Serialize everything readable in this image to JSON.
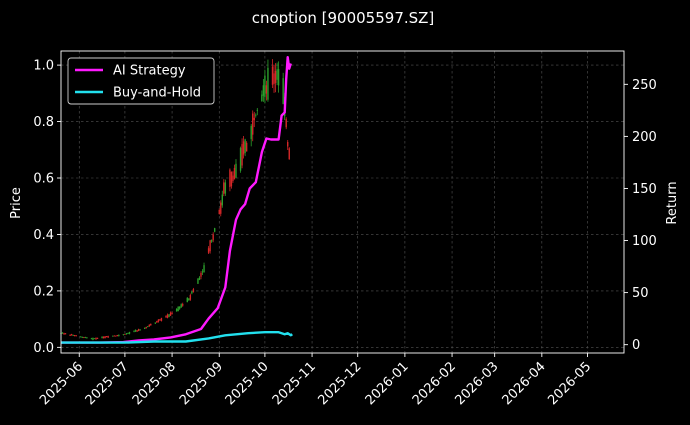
{
  "chart_data": {
    "type": "line",
    "title": "cnoption [90005597.SZ]",
    "ylabel_left": "Price",
    "ylabel_right": "Return",
    "left_ylim": [
      -0.02,
      1.05
    ],
    "right_ylim": [
      -8,
      282
    ],
    "left_yticks": [
      0.0,
      0.2,
      0.4,
      0.6,
      0.8,
      1.0
    ],
    "left_ytick_labels": [
      "0.0",
      "0.2",
      "0.4",
      "0.6",
      "0.8",
      "1.0"
    ],
    "right_yticks": [
      0,
      50,
      100,
      150,
      200,
      250
    ],
    "right_ytick_labels": [
      "0",
      "50",
      "100",
      "150",
      "200",
      "250"
    ],
    "x_start": "2025-05-20",
    "x_end": "2026-05-25",
    "xticks": [
      "2025-06-01",
      "2025-07-01",
      "2025-08-01",
      "2025-09-01",
      "2025-10-01",
      "2025-11-01",
      "2025-12-01",
      "2026-01-01",
      "2026-02-01",
      "2026-03-01",
      "2026-04-01",
      "2026-05-01"
    ],
    "xtick_labels": [
      "2025-06",
      "2025-07",
      "2025-08",
      "2025-09",
      "2025-10",
      "2025-11",
      "2025-12",
      "2026-01",
      "2026-02",
      "2026-03",
      "2026-04",
      "2026-05"
    ],
    "grid": true,
    "legend_position": "top-left",
    "series": [
      {
        "name": "AI Strategy",
        "axis": "right",
        "color": "#ff1aff",
        "points": [
          [
            "2025-05-20",
            2
          ],
          [
            "2025-06-15",
            2
          ],
          [
            "2025-06-30",
            2.5
          ],
          [
            "2025-07-10",
            4
          ],
          [
            "2025-07-20",
            5
          ],
          [
            "2025-07-31",
            7
          ],
          [
            "2025-08-10",
            10
          ],
          [
            "2025-08-20",
            15
          ],
          [
            "2025-08-25",
            25
          ],
          [
            "2025-08-31",
            35
          ],
          [
            "2025-09-05",
            55
          ],
          [
            "2025-09-08",
            90
          ],
          [
            "2025-09-12",
            120
          ],
          [
            "2025-09-15",
            130
          ],
          [
            "2025-09-18",
            135
          ],
          [
            "2025-09-21",
            150
          ],
          [
            "2025-09-25",
            156
          ],
          [
            "2025-09-29",
            185
          ],
          [
            "2025-10-02",
            198
          ],
          [
            "2025-10-05",
            197
          ],
          [
            "2025-10-10",
            197
          ],
          [
            "2025-10-12",
            220
          ],
          [
            "2025-10-14",
            223
          ],
          [
            "2025-10-15",
            255
          ],
          [
            "2025-10-16",
            276
          ],
          [
            "2025-10-17",
            265
          ],
          [
            "2025-10-18",
            270
          ]
        ]
      },
      {
        "name": "Buy-and-Hold",
        "axis": "right",
        "color": "#22e0ee",
        "points": [
          [
            "2025-05-20",
            2
          ],
          [
            "2025-07-01",
            2
          ],
          [
            "2025-07-20",
            3
          ],
          [
            "2025-08-10",
            3
          ],
          [
            "2025-08-25",
            6
          ],
          [
            "2025-09-05",
            9
          ],
          [
            "2025-09-20",
            11
          ],
          [
            "2025-10-01",
            12
          ],
          [
            "2025-10-10",
            12
          ],
          [
            "2025-10-14",
            10
          ],
          [
            "2025-10-16",
            11
          ],
          [
            "2025-10-18",
            9
          ],
          [
            "2025-10-19",
            10
          ]
        ]
      }
    ],
    "candles": {
      "axis": "left",
      "up_color": "#2ca02c",
      "down_color": "#d62728",
      "control_points": [
        [
          "2025-05-20",
          0.05
        ],
        [
          "2025-06-10",
          0.03
        ],
        [
          "2025-06-30",
          0.045
        ],
        [
          "2025-07-15",
          0.07
        ],
        [
          "2025-08-01",
          0.12
        ],
        [
          "2025-08-12",
          0.17
        ],
        [
          "2025-08-22",
          0.28
        ],
        [
          "2025-08-31",
          0.45
        ],
        [
          "2025-09-05",
          0.58
        ],
        [
          "2025-09-12",
          0.62
        ],
        [
          "2025-09-19",
          0.72
        ],
        [
          "2025-09-26",
          0.84
        ],
        [
          "2025-10-02",
          0.92
        ],
        [
          "2025-10-06",
          0.95
        ],
        [
          "2025-10-11",
          0.97
        ],
        [
          "2025-10-14",
          0.88
        ],
        [
          "2025-10-16",
          0.72
        ],
        [
          "2025-10-18",
          0.68
        ]
      ]
    }
  }
}
